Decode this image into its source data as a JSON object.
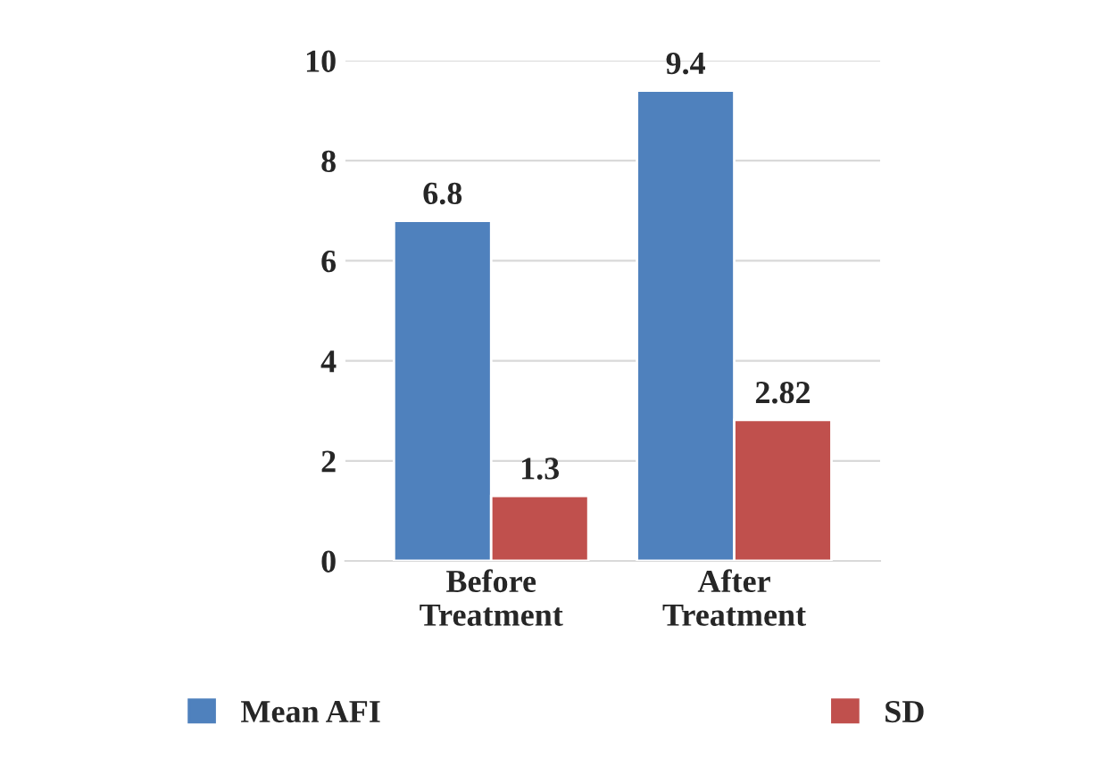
{
  "chart_data": {
    "type": "bar",
    "categories": [
      "Before\nTreatment",
      "After\nTreatment"
    ],
    "series": [
      {
        "name": "Mean AFI",
        "color": "#4f81bd",
        "values": [
          6.8,
          9.4
        ]
      },
      {
        "name": "SD",
        "color": "#c0504d",
        "values": [
          1.3,
          2.82
        ]
      }
    ],
    "ylim": [
      0,
      10
    ],
    "yticks": [
      0,
      2,
      4,
      6,
      8,
      10
    ],
    "grid": "y",
    "data_labels": true,
    "legend": "bottom"
  }
}
